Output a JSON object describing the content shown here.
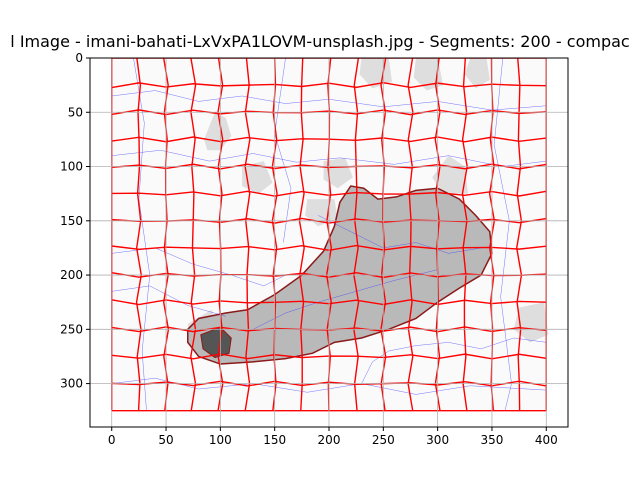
{
  "chart_data": {
    "type": "image",
    "title": "l Image - imani-bahati-LxVxPA1LOVM-unsplash.jpg - Segments: 200 - compac",
    "xlabel": "",
    "ylabel": "",
    "xlim": [
      -20,
      420
    ],
    "ylim": [
      340,
      0
    ],
    "y_inverted": true,
    "grid": true,
    "x_ticks": [
      0,
      50,
      100,
      150,
      200,
      250,
      300,
      350,
      400
    ],
    "y_ticks": [
      0,
      50,
      100,
      150,
      200,
      250,
      300
    ],
    "image_extent": {
      "width": 400,
      "height": 325
    },
    "segments": 200,
    "colors": {
      "boundary": "#ff0000",
      "contour": "#3a3aff",
      "background": "#fafafa",
      "object_fill": "#b9b9b9",
      "object_edge": "#8b1a1a",
      "shadow": "#555555",
      "grid": "#b0b0b0"
    },
    "grid_columns": [
      0,
      25,
      50,
      75,
      100,
      125,
      150,
      175,
      200,
      225,
      250,
      275,
      300,
      325,
      350,
      375,
      400
    ],
    "grid_rows": [
      0,
      25,
      50,
      75,
      100,
      125,
      150,
      175,
      200,
      225,
      250,
      275,
      300,
      325
    ],
    "object_outline": [
      [
        70,
        250
      ],
      [
        80,
        240
      ],
      [
        105,
        235
      ],
      [
        125,
        232
      ],
      [
        150,
        218
      ],
      [
        175,
        200
      ],
      [
        195,
        178
      ],
      [
        205,
        155
      ],
      [
        210,
        133
      ],
      [
        220,
        118
      ],
      [
        232,
        120
      ],
      [
        245,
        130
      ],
      [
        262,
        128
      ],
      [
        280,
        122
      ],
      [
        300,
        120
      ],
      [
        320,
        130
      ],
      [
        335,
        145
      ],
      [
        348,
        160
      ],
      [
        350,
        180
      ],
      [
        340,
        200
      ],
      [
        320,
        212
      ],
      [
        300,
        225
      ],
      [
        280,
        240
      ],
      [
        255,
        250
      ],
      [
        230,
        258
      ],
      [
        205,
        262
      ],
      [
        185,
        272
      ],
      [
        160,
        277
      ],
      [
        130,
        280
      ],
      [
        100,
        282
      ],
      [
        80,
        275
      ],
      [
        70,
        262
      ]
    ],
    "shadow_outline": [
      [
        82,
        255
      ],
      [
        100,
        248
      ],
      [
        110,
        258
      ],
      [
        108,
        272
      ],
      [
        95,
        276
      ],
      [
        84,
        268
      ]
    ],
    "gray_cells": [
      [
        [
          85,
          75
        ],
        [
          95,
          50
        ],
        [
          105,
          55
        ],
        [
          110,
          72
        ],
        [
          100,
          85
        ],
        [
          88,
          85
        ]
      ],
      [
        [
          120,
          100
        ],
        [
          140,
          95
        ],
        [
          148,
          115
        ],
        [
          135,
          125
        ],
        [
          120,
          118
        ]
      ],
      [
        [
          180,
          130
        ],
        [
          205,
          130
        ],
        [
          208,
          148
        ],
        [
          190,
          155
        ],
        [
          178,
          145
        ]
      ],
      [
        [
          195,
          95
        ],
        [
          215,
          92
        ],
        [
          222,
          110
        ],
        [
          208,
          120
        ],
        [
          195,
          112
        ]
      ],
      [
        [
          295,
          110
        ],
        [
          310,
          90
        ],
        [
          325,
          100
        ],
        [
          328,
          125
        ],
        [
          305,
          125
        ]
      ],
      [
        [
          330,
          0
        ],
        [
          345,
          0
        ],
        [
          348,
          20
        ],
        [
          335,
          28
        ],
        [
          325,
          15
        ]
      ],
      [
        [
          280,
          0
        ],
        [
          300,
          0
        ],
        [
          305,
          25
        ],
        [
          290,
          30
        ],
        [
          278,
          18
        ]
      ],
      [
        [
          230,
          0
        ],
        [
          255,
          0
        ],
        [
          258,
          22
        ],
        [
          240,
          28
        ],
        [
          228,
          15
        ]
      ],
      [
        [
          375,
          230
        ],
        [
          398,
          225
        ],
        [
          402,
          255
        ],
        [
          385,
          262
        ],
        [
          370,
          250
        ]
      ],
      [
        [
          70,
          245
        ],
        [
          92,
          232
        ],
        [
          100,
          255
        ],
        [
          88,
          268
        ],
        [
          72,
          260
        ]
      ]
    ],
    "contour_lines": [
      [
        [
          0,
          35
        ],
        [
          40,
          30
        ],
        [
          80,
          40
        ],
        [
          120,
          35
        ],
        [
          160,
          42
        ],
        [
          200,
          38
        ],
        [
          250,
          45
        ],
        [
          300,
          40
        ],
        [
          350,
          48
        ],
        [
          400,
          44
        ]
      ],
      [
        [
          0,
          90
        ],
        [
          45,
          85
        ],
        [
          90,
          95
        ],
        [
          130,
          88
        ],
        [
          170,
          96
        ],
        [
          210,
          92
        ],
        [
          260,
          98
        ],
        [
          310,
          90
        ],
        [
          360,
          100
        ],
        [
          400,
          95
        ]
      ],
      [
        [
          0,
          180
        ],
        [
          40,
          175
        ],
        [
          75,
          190
        ],
        [
          110,
          200
        ],
        [
          140,
          210
        ],
        [
          160,
          200
        ]
      ],
      [
        [
          0,
          215
        ],
        [
          35,
          210
        ],
        [
          70,
          228
        ],
        [
          105,
          238
        ]
      ],
      [
        [
          0,
          300
        ],
        [
          40,
          295
        ],
        [
          80,
          305
        ],
        [
          130,
          300
        ],
        [
          180,
          308
        ],
        [
          230,
          300
        ],
        [
          280,
          310
        ],
        [
          330,
          302
        ],
        [
          400,
          306
        ]
      ],
      [
        [
          230,
          300
        ],
        [
          240,
          280
        ],
        [
          255,
          270
        ],
        [
          280,
          265
        ],
        [
          310,
          262
        ],
        [
          340,
          268
        ],
        [
          370,
          258
        ],
        [
          400,
          262
        ]
      ],
      [
        [
          20,
          0
        ],
        [
          30,
          60
        ],
        [
          25,
          130
        ],
        [
          35,
          200
        ],
        [
          28,
          270
        ],
        [
          32,
          325
        ]
      ],
      [
        [
          160,
          0
        ],
        [
          150,
          70
        ],
        [
          165,
          120
        ],
        [
          158,
          170
        ]
      ],
      [
        [
          360,
          0
        ],
        [
          352,
          80
        ],
        [
          366,
          150
        ],
        [
          358,
          220
        ],
        [
          368,
          300
        ],
        [
          362,
          325
        ]
      ],
      [
        [
          190,
          145
        ],
        [
          220,
          160
        ],
        [
          250,
          175
        ],
        [
          280,
          170
        ],
        [
          310,
          180
        ],
        [
          340,
          175
        ]
      ],
      [
        [
          130,
          250
        ],
        [
          160,
          235
        ],
        [
          190,
          225
        ],
        [
          225,
          215
        ],
        [
          260,
          205
        ],
        [
          300,
          195
        ]
      ]
    ]
  }
}
